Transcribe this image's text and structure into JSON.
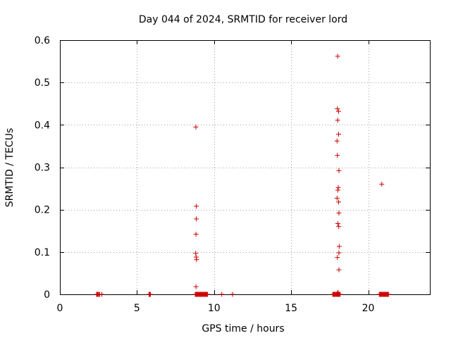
{
  "chart_data": {
    "type": "scatter",
    "title": "Day 044 of 2024, SRMTID for receiver lord",
    "xlabel": "GPS time / hours",
    "ylabel": "SRMTID / TECUs",
    "xlim": [
      0,
      24
    ],
    "ylim": [
      0,
      0.6
    ],
    "xticks": [
      0,
      5,
      10,
      15,
      20
    ],
    "yticks": [
      0,
      0.1,
      0.2,
      0.3,
      0.4,
      0.5,
      0.6
    ],
    "xtick_labels": [
      "0",
      "5",
      "10",
      "15",
      "20"
    ],
    "ytick_labels": [
      "0",
      "0.1",
      "0.2",
      "0.3",
      "0.4",
      "0.5",
      "0.6"
    ],
    "grid": true,
    "marker": "+",
    "color": "#cc0000",
    "series": [
      {
        "name": "SRMTID",
        "points": [
          [
            2.38,
            0
          ],
          [
            2.42,
            0
          ],
          [
            2.47,
            0
          ],
          [
            2.52,
            0
          ],
          [
            2.58,
            0
          ],
          [
            2.72,
            0
          ],
          [
            5.78,
            0
          ],
          [
            5.81,
            0
          ],
          [
            5.84,
            0
          ],
          [
            5.87,
            0
          ],
          [
            8.78,
            0
          ],
          [
            8.82,
            0
          ],
          [
            8.86,
            0
          ],
          [
            8.9,
            0
          ],
          [
            8.94,
            0
          ],
          [
            8.98,
            0
          ],
          [
            9.02,
            0
          ],
          [
            9.06,
            0
          ],
          [
            9.1,
            0
          ],
          [
            9.14,
            0
          ],
          [
            9.18,
            0
          ],
          [
            9.22,
            0
          ],
          [
            9.26,
            0
          ],
          [
            9.3,
            0
          ],
          [
            9.34,
            0
          ],
          [
            9.38,
            0
          ],
          [
            9.42,
            0
          ],
          [
            9.46,
            0
          ],
          [
            9.5,
            0
          ],
          [
            9.54,
            0
          ],
          [
            9.58,
            0
          ],
          [
            10.5,
            0
          ],
          [
            11.2,
            0
          ],
          [
            8.82,
            0.395
          ],
          [
            8.85,
            0.208
          ],
          [
            8.85,
            0.178
          ],
          [
            8.83,
            0.142
          ],
          [
            8.81,
            0.097
          ],
          [
            8.84,
            0.088
          ],
          [
            8.86,
            0.082
          ],
          [
            8.83,
            0.018
          ],
          [
            17.7,
            0
          ],
          [
            17.74,
            0
          ],
          [
            17.78,
            0
          ],
          [
            17.82,
            0
          ],
          [
            17.86,
            0
          ],
          [
            17.9,
            0
          ],
          [
            17.94,
            0
          ],
          [
            17.98,
            0
          ],
          [
            18.02,
            0
          ],
          [
            18.06,
            0
          ],
          [
            18.1,
            0
          ],
          [
            18.14,
            0
          ],
          [
            18.18,
            0
          ],
          [
            18.02,
            0.562
          ],
          [
            18.0,
            0.438
          ],
          [
            18.08,
            0.432
          ],
          [
            18.02,
            0.411
          ],
          [
            18.08,
            0.378
          ],
          [
            17.98,
            0.362
          ],
          [
            18.0,
            0.328
          ],
          [
            18.1,
            0.292
          ],
          [
            18.06,
            0.252
          ],
          [
            18.03,
            0.246
          ],
          [
            17.98,
            0.227
          ],
          [
            18.08,
            0.218
          ],
          [
            18.1,
            0.192
          ],
          [
            18.03,
            0.167
          ],
          [
            18.09,
            0.16
          ],
          [
            18.12,
            0.113
          ],
          [
            18.1,
            0.098
          ],
          [
            18.0,
            0.087
          ],
          [
            18.1,
            0.058
          ],
          [
            18.05,
            0.005
          ],
          [
            18.0,
            0.002
          ],
          [
            20.72,
            0
          ],
          [
            20.76,
            0
          ],
          [
            20.8,
            0
          ],
          [
            20.84,
            0
          ],
          [
            20.88,
            0
          ],
          [
            20.92,
            0
          ],
          [
            20.96,
            0
          ],
          [
            21.0,
            0
          ],
          [
            21.04,
            0
          ],
          [
            21.08,
            0
          ],
          [
            21.12,
            0
          ],
          [
            21.16,
            0
          ],
          [
            21.2,
            0
          ],
          [
            21.24,
            0
          ],
          [
            21.28,
            0
          ],
          [
            21.32,
            0
          ],
          [
            20.88,
            0.26
          ]
        ]
      }
    ]
  }
}
